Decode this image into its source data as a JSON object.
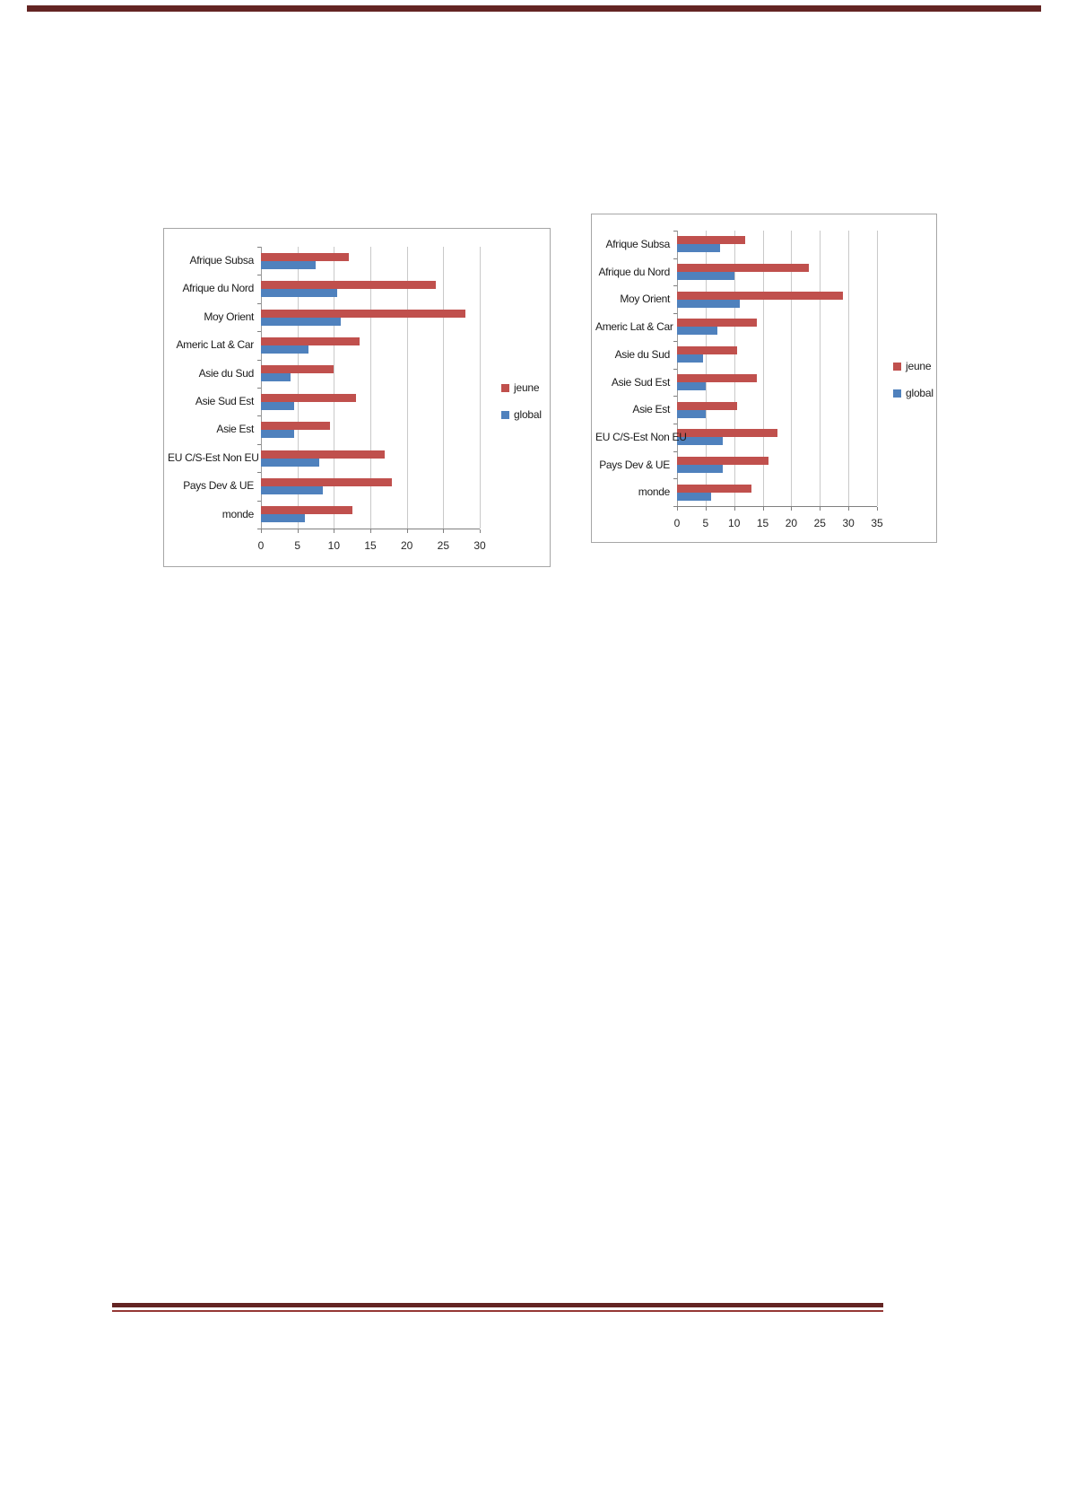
{
  "page": {
    "top_rule_color": "#632423",
    "footer_rule_thick_color": "#632423",
    "footer_rule_thin_color": "#953735"
  },
  "chart_data": [
    {
      "type": "bar",
      "orientation": "horizontal",
      "title": "",
      "categories": [
        "Afrique Subsa",
        "Afrique du Nord",
        "Moy Orient",
        "Americ Lat & Car",
        "Asie du Sud",
        "Asie Sud Est",
        "Asie Est",
        "EU C/S-Est Non EU",
        "Pays Dev & UE",
        "monde"
      ],
      "series": [
        {
          "name": "jeune",
          "color": "#C0504D",
          "values": [
            12,
            24,
            28,
            13.5,
            10,
            13,
            9.5,
            17,
            18,
            12.5
          ]
        },
        {
          "name": "global",
          "color": "#4F81BD",
          "values": [
            7.5,
            10.5,
            11,
            6.5,
            4,
            4.5,
            4.5,
            8,
            8.5,
            6
          ]
        }
      ],
      "xlim": [
        0,
        30
      ],
      "xticks": [
        "0",
        "5",
        "10",
        "15",
        "20",
        "25",
        "30"
      ],
      "grid": true,
      "legend_position": "right"
    },
    {
      "type": "bar",
      "orientation": "horizontal",
      "title": "",
      "categories": [
        "Afrique Subsa",
        "Afrique du Nord",
        "Moy Orient",
        "Americ Lat & Car",
        "Asie du Sud",
        "Asie Sud Est",
        "Asie Est",
        "EU C/S-Est Non EU",
        "Pays Dev & UE",
        "monde"
      ],
      "series": [
        {
          "name": "jeune",
          "color": "#C0504D",
          "values": [
            12,
            23,
            29,
            14,
            10.5,
            14,
            10.5,
            17.5,
            16,
            13
          ]
        },
        {
          "name": "global",
          "color": "#4F81BD",
          "values": [
            7.5,
            10,
            11,
            7,
            4.5,
            5,
            5,
            8,
            8,
            6
          ]
        }
      ],
      "xlim": [
        0,
        35
      ],
      "xticks": [
        "0",
        "5",
        "10",
        "15",
        "20",
        "25",
        "30",
        "35"
      ],
      "grid": true,
      "legend_position": "right"
    }
  ]
}
